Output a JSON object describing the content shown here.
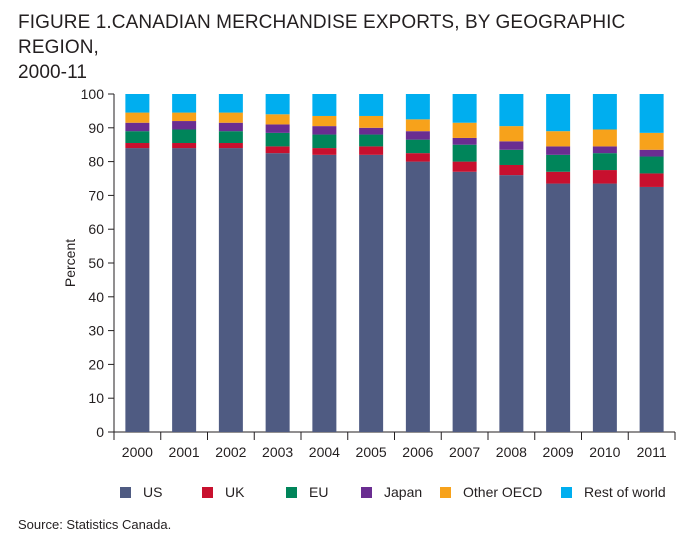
{
  "title_line1": "FIGURE 1.CANADIAN MERCHANDISE EXPORTS, BY GEOGRAPHIC REGION,",
  "title_line2": "2000-11",
  "source": "Source: Statistics Canada.",
  "chart_data": {
    "type": "bar",
    "stacked": true,
    "ylabel": "Percent",
    "xlabel": "",
    "ylim": [
      0,
      100
    ],
    "yticks": [
      0,
      10,
      20,
      30,
      40,
      50,
      60,
      70,
      80,
      90,
      100
    ],
    "legend_position": "bottom",
    "categories": [
      "2000",
      "2001",
      "2002",
      "2003",
      "2004",
      "2005",
      "2006",
      "2007",
      "2008",
      "2009",
      "2010",
      "2011"
    ],
    "series": [
      {
        "name": "US",
        "color": "#4f5b82",
        "values": [
          84,
          84,
          84,
          82.5,
          82,
          82,
          80,
          77,
          76,
          73.5,
          73.5,
          72.5
        ]
      },
      {
        "name": "UK",
        "color": "#c8102e",
        "values": [
          1.5,
          1.5,
          1.5,
          2,
          2,
          2.5,
          2.5,
          3,
          3,
          3.5,
          4,
          4
        ]
      },
      {
        "name": "EU",
        "color": "#00855a",
        "values": [
          3.5,
          4,
          3.5,
          4,
          4,
          3.5,
          4,
          5,
          4.5,
          5,
          5,
          5
        ]
      },
      {
        "name": "Japan",
        "color": "#6a2d91",
        "values": [
          2.5,
          2.5,
          2.5,
          2.5,
          2.5,
          2,
          2.5,
          2,
          2.5,
          2.5,
          2,
          2
        ]
      },
      {
        "name": "Other OECD",
        "color": "#f7a21b",
        "values": [
          3,
          2.5,
          3,
          3,
          3,
          3.5,
          3.5,
          4.5,
          4.5,
          4.5,
          5,
          5
        ]
      },
      {
        "name": "Rest of world",
        "color": "#00aeef",
        "values": [
          5.5,
          5.5,
          5.5,
          6,
          6.5,
          6.5,
          7.5,
          8.5,
          9.5,
          11,
          10.5,
          11.5
        ]
      }
    ]
  }
}
